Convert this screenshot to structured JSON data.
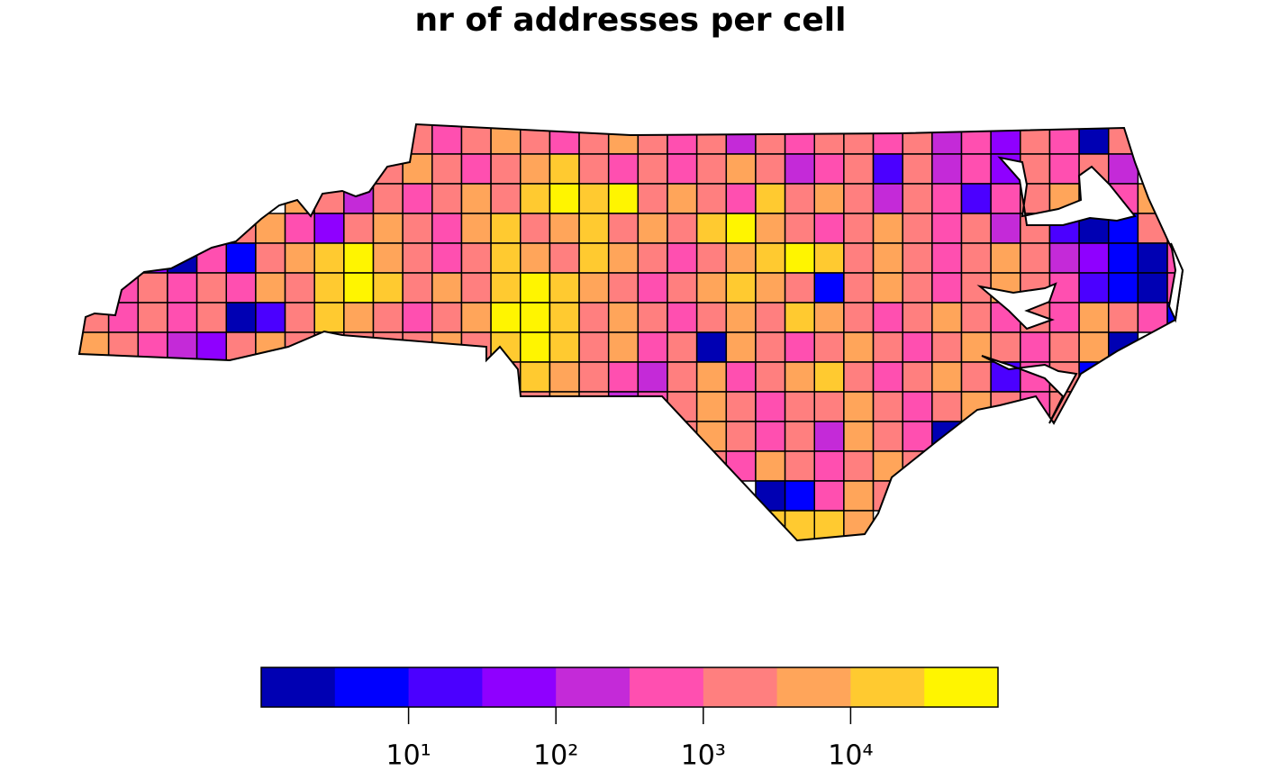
{
  "chart_data": {
    "type": "grid_map",
    "title": "nr of addresses per cell",
    "values": [
      [
        null,
        null,
        null,
        null,
        null,
        null,
        null,
        null,
        null,
        null,
        null,
        2000,
        500,
        2000,
        5000,
        2000,
        500,
        2000,
        5000,
        2000,
        500,
        2000,
        200,
        2000,
        500,
        2000,
        2000,
        500,
        2000,
        200,
        500,
        50,
        2000,
        500,
        2,
        2000
      ],
      [
        null,
        null,
        null,
        null,
        null,
        null,
        null,
        null,
        null,
        null,
        2000,
        5000,
        2000,
        500,
        2000,
        5000,
        20000,
        2000,
        500,
        2000,
        500,
        2000,
        5000,
        2000,
        200,
        500,
        2000,
        20,
        2000,
        200,
        500,
        50,
        2000,
        500,
        2000,
        200
      ],
      [
        null,
        null,
        null,
        null,
        null,
        null,
        null,
        5000,
        2000,
        200,
        2000,
        500,
        2000,
        5000,
        2000,
        20000,
        50000,
        20000,
        50000,
        2000,
        5000,
        2000,
        500,
        20000,
        2000,
        5000,
        2000,
        200,
        2000,
        500,
        20,
        500,
        2000,
        5000,
        2000,
        500,
        5000
      ],
      [
        null,
        null,
        null,
        null,
        null,
        2000,
        5000,
        500,
        50,
        2000,
        5000,
        2000,
        500,
        5000,
        20000,
        2000,
        5000,
        20000,
        2000,
        5000,
        2000,
        20000,
        50000,
        5000,
        2000,
        500,
        2000,
        5000,
        2000,
        500,
        2000,
        200,
        2000,
        20,
        2,
        5,
        2000
      ],
      [
        null,
        null,
        50,
        2,
        500,
        5,
        2000,
        5000,
        20000,
        50000,
        5000,
        2000,
        500,
        2000,
        20000,
        5000,
        2000,
        20000,
        5000,
        2000,
        500,
        2000,
        5000,
        20000,
        50000,
        20000,
        2000,
        5000,
        2000,
        500,
        2000,
        5000,
        2000,
        200,
        50,
        5,
        2,
        500
      ],
      [
        null,
        500,
        2000,
        500,
        2000,
        500,
        5000,
        2000,
        20000,
        50000,
        20000,
        2000,
        5000,
        2000,
        20000,
        50000,
        20000,
        5000,
        2000,
        500,
        2000,
        5000,
        20000,
        5000,
        2000,
        5,
        2000,
        5000,
        2000,
        500,
        2000,
        5000,
        2000,
        500,
        20,
        5,
        2,
        500
      ],
      [
        2000,
        500,
        2000,
        500,
        2000,
        2,
        20,
        2000,
        20000,
        5000,
        2000,
        500,
        2000,
        5000,
        50000,
        50000,
        20000,
        2000,
        5000,
        2000,
        500,
        2000,
        5000,
        2000,
        20000,
        5000,
        2000,
        500,
        2000,
        5000,
        2000,
        500,
        2000,
        500,
        5000,
        2000,
        500,
        5
      ],
      [
        5000,
        2000,
        500,
        200,
        50,
        2000,
        5000,
        2000,
        2000,
        2000,
        2000,
        2000,
        5000,
        2000,
        20000,
        50000,
        20000,
        2000,
        5000,
        500,
        2000,
        2,
        5000,
        2000,
        500,
        2000,
        5000,
        2000,
        500,
        2000,
        5000,
        2000,
        500,
        2000,
        5000,
        2
      ],
      [
        null,
        null,
        null,
        null,
        null,
        null,
        null,
        null,
        null,
        null,
        null,
        null,
        null,
        null,
        2000,
        20000,
        5000,
        2000,
        500,
        200,
        2000,
        5000,
        500,
        2000,
        5000,
        20000,
        2000,
        500,
        2000,
        5000,
        2000,
        20,
        500,
        2000,
        5
      ],
      [
        null,
        null,
        null,
        null,
        null,
        null,
        null,
        null,
        null,
        null,
        null,
        null,
        null,
        null,
        null,
        2000,
        5000,
        2000,
        200,
        500,
        2000,
        5000,
        2000,
        500,
        2000,
        2000,
        5000,
        2000,
        500,
        2000,
        5000,
        2000,
        500,
        2000
      ],
      [
        null,
        null,
        null,
        null,
        null,
        null,
        null,
        null,
        null,
        null,
        null,
        null,
        null,
        null,
        null,
        null,
        null,
        null,
        null,
        null,
        2000,
        5000,
        2000,
        500,
        2000,
        200,
        5000,
        2000,
        500,
        2,
        5
      ],
      [
        null,
        null,
        null,
        null,
        null,
        null,
        null,
        null,
        null,
        null,
        null,
        null,
        null,
        null,
        null,
        null,
        null,
        null,
        null,
        null,
        null,
        2000,
        500,
        5000,
        2000,
        500,
        2000,
        5000,
        2000,
        500
      ],
      [
        null,
        null,
        null,
        null,
        null,
        null,
        null,
        null,
        null,
        null,
        null,
        null,
        null,
        null,
        null,
        null,
        null,
        null,
        null,
        null,
        null,
        null,
        null,
        2,
        5,
        500,
        5000,
        2000
      ],
      [
        null,
        null,
        null,
        null,
        null,
        null,
        null,
        null,
        null,
        null,
        null,
        null,
        null,
        null,
        null,
        null,
        null,
        null,
        null,
        null,
        null,
        null,
        null,
        20000,
        20000,
        20000,
        5000
      ]
    ],
    "log_scale": true,
    "colors": [
      "#0000b3",
      "#0000ff",
      "#4b00ff",
      "#8f00ff",
      "#c42ad8",
      "#ff4fb0",
      "#ff7f7f",
      "#ffa55a",
      "#ffca30",
      "#fff500"
    ],
    "colorbar": {
      "lim": [
        1,
        100000
      ],
      "ticks": [
        {
          "value": 10,
          "label": "10¹"
        },
        {
          "value": 100,
          "label": "10²"
        },
        {
          "value": 1000,
          "label": "10³"
        },
        {
          "value": 10000,
          "label": "10⁴"
        }
      ]
    }
  }
}
